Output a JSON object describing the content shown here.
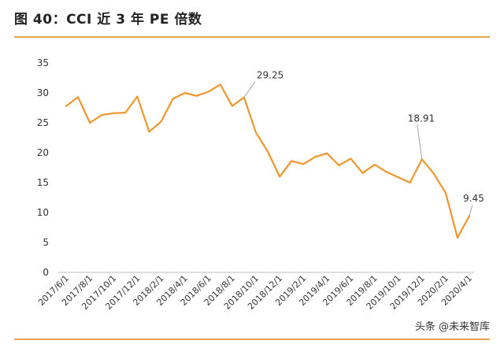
{
  "title": "图 40：CCI 近 3 年 PE 倍数",
  "watermark": "头条 @未来智库",
  "colors": {
    "line": "#F0962E",
    "accent_rule": "#E8A04A",
    "annotation_line": "#A6A6A6"
  },
  "chart_data": {
    "type": "line",
    "title": "",
    "xlabel": "",
    "ylabel": "",
    "ylim": [
      0,
      35
    ],
    "yticks": [
      0,
      5,
      10,
      15,
      20,
      25,
      30,
      35
    ],
    "grid": false,
    "x_tick_labels": [
      "2017/6/1",
      "2017/8/1",
      "2017/10/1",
      "2017/12/1",
      "2018/2/1",
      "2018/4/1",
      "2018/6/1",
      "2018/8/1",
      "2018/10/1",
      "2018/12/1",
      "2019/2/1",
      "2019/4/1",
      "2019/6/1",
      "2019/8/1",
      "2019/10/1",
      "2019/12/1",
      "2020/2/1",
      "2020/4/1"
    ],
    "series": [
      {
        "values": [
          27.8,
          29.3,
          25.0,
          26.3,
          26.6,
          26.7,
          29.4,
          23.5,
          25.2,
          29.0,
          30.0,
          29.5,
          30.2,
          31.4,
          27.8,
          29.25,
          23.4,
          20.2,
          16.0,
          18.6,
          18.1,
          19.3,
          19.9,
          17.9,
          19.0,
          16.6,
          18.0,
          16.8,
          15.9,
          15.0,
          18.91,
          16.5,
          13.3,
          5.8,
          9.45
        ]
      }
    ],
    "annotations": [
      {
        "label": "29.25",
        "index": 15,
        "value": 29.25
      },
      {
        "label": "18.91",
        "index": 30,
        "value": 18.91
      },
      {
        "label": "9.45",
        "index": 34,
        "value": 9.45
      }
    ]
  }
}
